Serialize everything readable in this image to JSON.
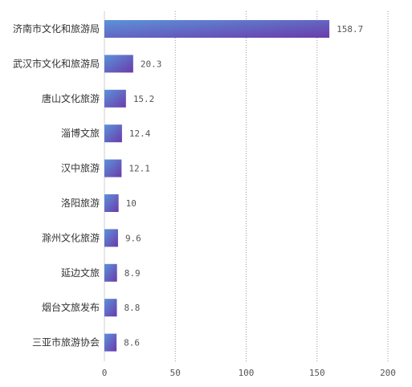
{
  "chart_data": {
    "type": "bar",
    "orientation": "horizontal",
    "categories": [
      "济南市文化和旅游局",
      "武汉市文化和旅游局",
      "唐山文化旅游",
      "淄博文旅",
      "汉中旅游",
      "洛阳旅游",
      "滁州文化旅游",
      "延边文旅",
      "烟台文旅发布",
      "三亚市旅游协会"
    ],
    "value_labels": [
      "158.7",
      "20.3",
      "15.2",
      "12.4",
      "12.1",
      "10",
      "9.6",
      "8.9",
      "8.8",
      "8.6"
    ],
    "values": [
      158.7,
      20.3,
      15.2,
      12.4,
      12.1,
      10,
      9.6,
      8.9,
      8.8,
      8.6
    ],
    "x_ticks": [
      0,
      50,
      100,
      150,
      200
    ],
    "x_tick_labels": [
      "0",
      "50",
      "100",
      "150",
      "200"
    ],
    "xlim": [
      0,
      200
    ],
    "title": "",
    "xlabel": "",
    "ylabel": "",
    "grid": "vertical-dotted",
    "legend": "none",
    "colors": {
      "bar_start": "#5b93d9",
      "bar_end": "#6a3bab",
      "grid": "#9a9a9a",
      "text": "#333333"
    }
  }
}
